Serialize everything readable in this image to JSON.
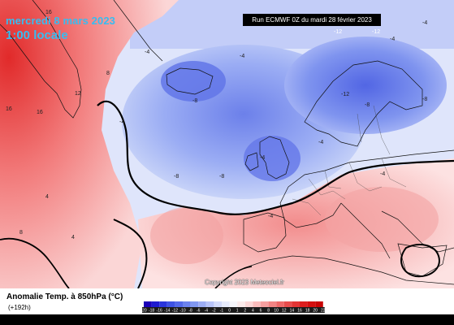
{
  "map": {
    "valid_date": "mercredi 8 mars 2023",
    "valid_time": "1:00 locale",
    "run_label": "Run ECMWF 0Z du mardi 28 février 2023",
    "copyright": "Copyright 2023 Meteociel.fr",
    "contour_labels": [
      "16",
      "-12",
      "16",
      "12",
      "16",
      "4",
      "-8",
      "-8",
      "-8",
      "-4",
      "-4",
      "-4",
      "-4",
      "-8",
      "8",
      "-4",
      "-4",
      "-12",
      "-4",
      "-4",
      "-4",
      "4",
      "8",
      "-8",
      "-12"
    ]
  },
  "legend": {
    "title": "Anomalie Temp. à 850hPa (°C)",
    "forecast_hour": "(+192h)",
    "scale_values": [
      "-20",
      "-18",
      "-16",
      "-14",
      "-12",
      "-10",
      "-8",
      "-6",
      "-4",
      "-2",
      "-1",
      "0",
      "1",
      "2",
      "4",
      "6",
      "8",
      "10",
      "12",
      "14",
      "16",
      "18",
      "20",
      "22"
    ],
    "scale_colors": [
      "#1a00b8",
      "#1e1ad0",
      "#2a35dc",
      "#3d52e4",
      "#5268ea",
      "#6b82ef",
      "#8198f2",
      "#9cadf5",
      "#b7c3f8",
      "#d2daf9",
      "#e6ebfc",
      "#f6f6fb",
      "#fcebeb",
      "#fcd7d7",
      "#fabcbc",
      "#f7a0a0",
      "#f38484",
      "#ee6868",
      "#e84c4c",
      "#e33434",
      "#dc1e1e",
      "#d40f0f",
      "#c90404"
    ]
  },
  "colors": {
    "warm": "#ee5a5a",
    "cold": "#6b7fe8",
    "title_text": "#36bdf2"
  }
}
